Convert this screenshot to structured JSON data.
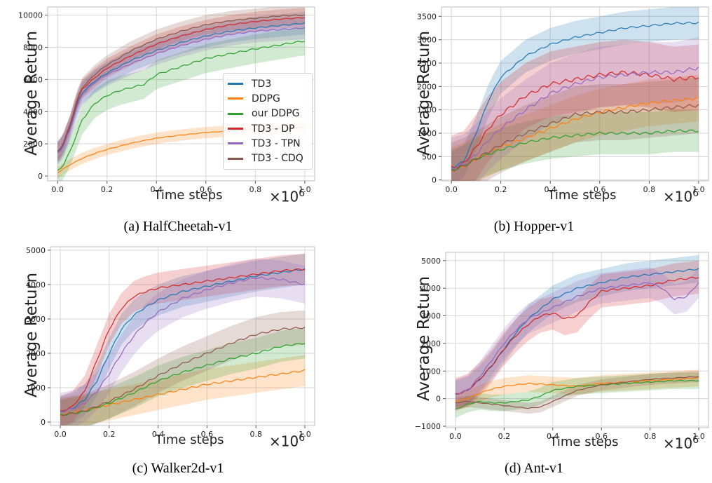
{
  "colors": {
    "TD3": "#1f77b4",
    "DDPG": "#ff7f0e",
    "our DDPG": "#2ca02c",
    "TD3 - DP": "#d62728",
    "TD3 - TPN": "#9467bd",
    "TD3 - CDQ": "#8c564b"
  },
  "chart_data": [
    {
      "type": "line",
      "caption": "(a) HalfCheetah-v1",
      "xlabel": "Time steps",
      "ylabel": "Average Return",
      "x_scale_label": "×10",
      "x_scale_exp": "6",
      "xlim": [
        -0.04,
        1.04
      ],
      "ylim": [
        -300,
        10500
      ],
      "xticks": [
        0.0,
        0.2,
        0.4,
        0.6,
        0.8,
        1.0
      ],
      "xtick_labels": [
        "0.0",
        "0.2",
        "0.4",
        "0.6",
        "0.8",
        "1.0"
      ],
      "yticks": [
        0,
        2000,
        4000,
        6000,
        8000,
        10000
      ],
      "ytick_labels": [
        "0",
        "2000",
        "4000",
        "6000",
        "8000",
        "10000"
      ],
      "grid": true,
      "legend": {
        "position": "lower-right",
        "entries": [
          "TD3",
          "DDPG",
          "our DDPG",
          "TD3 - DP",
          "TD3 - TPN",
          "TD3 - CDQ"
        ]
      },
      "series": [
        {
          "name": "TD3",
          "x": [
            0.0,
            0.02,
            0.05,
            0.08,
            0.1,
            0.15,
            0.2,
            0.3,
            0.4,
            0.5,
            0.6,
            0.7,
            0.8,
            0.9,
            1.0
          ],
          "y": [
            1500,
            1800,
            3000,
            4500,
            5200,
            5900,
            6400,
            7200,
            7800,
            8300,
            8700,
            9000,
            9200,
            9350,
            9500
          ],
          "band": 700
        },
        {
          "name": "DDPG",
          "x": [
            0.0,
            0.02,
            0.05,
            0.1,
            0.15,
            0.2,
            0.3,
            0.4,
            0.5,
            0.6,
            0.7,
            0.8,
            0.9,
            1.0
          ],
          "y": [
            200,
            400,
            700,
            1100,
            1400,
            1650,
            2050,
            2350,
            2550,
            2700,
            2800,
            2900,
            2970,
            3050
          ],
          "band": 350
        },
        {
          "name": "our DDPG",
          "x": [
            0.0,
            0.02,
            0.05,
            0.1,
            0.15,
            0.2,
            0.25,
            0.3,
            0.35,
            0.4,
            0.5,
            0.6,
            0.7,
            0.8,
            0.9,
            1.0
          ],
          "y": [
            300,
            600,
            1500,
            3500,
            4500,
            5000,
            5300,
            5500,
            5700,
            6300,
            6800,
            7300,
            7600,
            7900,
            8150,
            8400
          ],
          "band": 900
        },
        {
          "name": "TD3 - DP",
          "x": [
            0.0,
            0.02,
            0.05,
            0.08,
            0.1,
            0.15,
            0.2,
            0.3,
            0.4,
            0.5,
            0.6,
            0.7,
            0.8,
            0.9,
            1.0
          ],
          "y": [
            1500,
            1900,
            3100,
            4700,
            5400,
            6100,
            6700,
            7500,
            8200,
            8700,
            9100,
            9400,
            9600,
            9750,
            9850
          ],
          "band": 600
        },
        {
          "name": "TD3 - TPN",
          "x": [
            0.0,
            0.02,
            0.05,
            0.08,
            0.1,
            0.15,
            0.2,
            0.3,
            0.4,
            0.5,
            0.6,
            0.7,
            0.8,
            0.9,
            1.0
          ],
          "y": [
            1400,
            1700,
            2900,
            4400,
            5100,
            5800,
            6300,
            7000,
            7600,
            8100,
            8500,
            8800,
            9000,
            9100,
            9200
          ],
          "band": 700
        },
        {
          "name": "TD3 - CDQ",
          "x": [
            0.0,
            0.02,
            0.05,
            0.08,
            0.1,
            0.15,
            0.2,
            0.3,
            0.4,
            0.5,
            0.6,
            0.7,
            0.8,
            0.9,
            1.0
          ],
          "y": [
            1500,
            1900,
            3200,
            4800,
            5500,
            6300,
            6900,
            7800,
            8500,
            9000,
            9400,
            9650,
            9800,
            9950,
            10000
          ],
          "band": 600
        }
      ]
    },
    {
      "type": "line",
      "caption": "(b) Hopper-v1",
      "xlabel": "Time steps",
      "ylabel": "Average Return",
      "x_scale_label": "×10",
      "x_scale_exp": "6",
      "xlim": [
        -0.04,
        1.04
      ],
      "ylim": [
        -20,
        3700
      ],
      "xticks": [
        0.0,
        0.2,
        0.4,
        0.6,
        0.8,
        1.0
      ],
      "xtick_labels": [
        "0.0",
        "0.2",
        "0.4",
        "0.6",
        "0.8",
        "1.0"
      ],
      "yticks": [
        0,
        500,
        1000,
        1500,
        2000,
        2500,
        3000,
        3500
      ],
      "ytick_labels": [
        "0",
        "500",
        "1000",
        "1500",
        "2000",
        "2500",
        "3000",
        "3500"
      ],
      "grid": true,
      "series": [
        {
          "name": "TD3",
          "x": [
            0.0,
            0.05,
            0.1,
            0.15,
            0.2,
            0.3,
            0.4,
            0.5,
            0.6,
            0.7,
            0.8,
            0.9,
            1.0
          ],
          "y": [
            250,
            400,
            1000,
            1700,
            2200,
            2650,
            2900,
            3050,
            3150,
            3250,
            3300,
            3350,
            3360
          ],
          "band": 350
        },
        {
          "name": "DDPG",
          "x": [
            0.0,
            0.05,
            0.1,
            0.2,
            0.3,
            0.4,
            0.5,
            0.6,
            0.7,
            0.8,
            0.9,
            1.0
          ],
          "y": [
            200,
            300,
            450,
            700,
            900,
            1100,
            1300,
            1450,
            1550,
            1650,
            1700,
            1750
          ],
          "band": 500
        },
        {
          "name": "our DDPG",
          "x": [
            0.0,
            0.05,
            0.1,
            0.2,
            0.3,
            0.4,
            0.5,
            0.6,
            0.7,
            0.8,
            0.9,
            1.0
          ],
          "y": [
            200,
            300,
            450,
            650,
            800,
            900,
            950,
            1000,
            1000,
            1000,
            1050,
            1050
          ],
          "band": 450
        },
        {
          "name": "TD3 - DP",
          "x": [
            0.0,
            0.05,
            0.1,
            0.15,
            0.2,
            0.3,
            0.4,
            0.5,
            0.6,
            0.7,
            0.8,
            0.9,
            1.0
          ],
          "y": [
            250,
            350,
            700,
            1100,
            1400,
            1800,
            2050,
            2150,
            2250,
            2300,
            2250,
            2150,
            2200
          ],
          "band": 700
        },
        {
          "name": "TD3 - TPN",
          "x": [
            0.0,
            0.05,
            0.1,
            0.15,
            0.2,
            0.3,
            0.4,
            0.5,
            0.6,
            0.7,
            0.8,
            0.9,
            1.0
          ],
          "y": [
            250,
            330,
            550,
            850,
            1100,
            1500,
            1850,
            2050,
            2200,
            2250,
            2300,
            2300,
            2400
          ],
          "band": 650
        },
        {
          "name": "TD3 - CDQ",
          "x": [
            0.0,
            0.05,
            0.1,
            0.2,
            0.3,
            0.4,
            0.5,
            0.6,
            0.7,
            0.8,
            0.9,
            1.0
          ],
          "y": [
            200,
            300,
            450,
            750,
            1000,
            1200,
            1400,
            1450,
            1450,
            1500,
            1550,
            1600
          ],
          "band": 600
        }
      ]
    },
    {
      "type": "line",
      "caption": "(c) Walker2d-v1",
      "xlabel": "Time steps",
      "ylabel": "Average Return",
      "x_scale_label": "×10",
      "x_scale_exp": "6",
      "xlim": [
        -0.04,
        1.04
      ],
      "ylim": [
        -100,
        5100
      ],
      "xticks": [
        0.0,
        0.2,
        0.4,
        0.6,
        0.8,
        1.0
      ],
      "xtick_labels": [
        "0.0",
        "0.2",
        "0.4",
        "0.6",
        "0.8",
        "1.0"
      ],
      "yticks": [
        0,
        1000,
        2000,
        3000,
        4000,
        5000
      ],
      "ytick_labels": [
        "0",
        "1000",
        "2000",
        "3000",
        "4000",
        "5000"
      ],
      "grid": true,
      "series": [
        {
          "name": "TD3",
          "x": [
            0.0,
            0.05,
            0.1,
            0.15,
            0.2,
            0.25,
            0.3,
            0.35,
            0.4,
            0.5,
            0.6,
            0.7,
            0.8,
            0.9,
            1.0
          ],
          "y": [
            300,
            400,
            650,
            1200,
            2000,
            2700,
            3100,
            3350,
            3550,
            3800,
            3950,
            4100,
            4250,
            4350,
            4450
          ],
          "band": 450
        },
        {
          "name": "DDPG",
          "x": [
            0.0,
            0.1,
            0.2,
            0.3,
            0.4,
            0.5,
            0.6,
            0.7,
            0.8,
            0.9,
            1.0
          ],
          "y": [
            200,
            350,
            500,
            650,
            800,
            950,
            1100,
            1200,
            1300,
            1400,
            1500
          ],
          "band": 450
        },
        {
          "name": "our DDPG",
          "x": [
            0.0,
            0.1,
            0.2,
            0.3,
            0.4,
            0.5,
            0.6,
            0.7,
            0.8,
            0.9,
            1.0
          ],
          "y": [
            200,
            300,
            550,
            850,
            1200,
            1450,
            1650,
            1850,
            2000,
            2200,
            2300
          ],
          "band": 450
        },
        {
          "name": "TD3 - DP",
          "x": [
            0.0,
            0.05,
            0.1,
            0.15,
            0.2,
            0.25,
            0.3,
            0.35,
            0.4,
            0.5,
            0.6,
            0.7,
            0.8,
            0.9,
            1.0
          ],
          "y": [
            300,
            450,
            900,
            1800,
            2700,
            3300,
            3650,
            3800,
            3900,
            4000,
            4100,
            4200,
            4300,
            4400,
            4450
          ],
          "band": 450
        },
        {
          "name": "TD3 - TPN",
          "x": [
            0.0,
            0.05,
            0.1,
            0.15,
            0.2,
            0.25,
            0.3,
            0.35,
            0.4,
            0.5,
            0.6,
            0.7,
            0.8,
            0.9,
            1.0
          ],
          "y": [
            300,
            380,
            550,
            900,
            1400,
            2000,
            2500,
            2900,
            3200,
            3600,
            3850,
            4050,
            4200,
            4150,
            4000
          ],
          "band": 550
        },
        {
          "name": "TD3 - CDQ",
          "x": [
            0.0,
            0.1,
            0.2,
            0.3,
            0.4,
            0.5,
            0.6,
            0.7,
            0.8,
            0.9,
            1.0
          ],
          "y": [
            200,
            320,
            600,
            950,
            1350,
            1700,
            2000,
            2300,
            2550,
            2700,
            2750
          ],
          "band": 500
        }
      ]
    },
    {
      "type": "line",
      "caption": "(d) Ant-v1",
      "xlabel": "Time steps",
      "ylabel": "Average Return",
      "x_scale_label": "×10",
      "x_scale_exp": "6",
      "xlim": [
        -0.04,
        1.04
      ],
      "ylim": [
        -1050,
        5300
      ],
      "xticks": [
        0.0,
        0.2,
        0.4,
        0.6,
        0.8,
        1.0
      ],
      "xtick_labels": [
        "0.0",
        "0.2",
        "0.4",
        "0.6",
        "0.8",
        "1.0"
      ],
      "yticks": [
        -1000,
        0,
        1000,
        2000,
        3000,
        4000,
        5000
      ],
      "ytick_labels": [
        "−1000",
        "0",
        "1000",
        "2000",
        "3000",
        "4000",
        "5000"
      ],
      "grid": true,
      "series": [
        {
          "name": "TD3",
          "x": [
            0.0,
            0.05,
            0.1,
            0.15,
            0.2,
            0.25,
            0.3,
            0.4,
            0.5,
            0.6,
            0.7,
            0.8,
            0.9,
            1.0
          ],
          "y": [
            150,
            300,
            700,
            1200,
            1800,
            2400,
            2900,
            3600,
            4000,
            4200,
            4400,
            4500,
            4600,
            4700
          ],
          "band": 500
        },
        {
          "name": "DDPG",
          "x": [
            0.0,
            0.05,
            0.1,
            0.15,
            0.2,
            0.3,
            0.4,
            0.5,
            0.6,
            0.7,
            0.8,
            0.9,
            1.0
          ],
          "y": [
            -100,
            0,
            200,
            350,
            450,
            550,
            500,
            450,
            550,
            600,
            650,
            700,
            750
          ],
          "band": 300
        },
        {
          "name": "our DDPG",
          "x": [
            0.0,
            0.05,
            0.1,
            0.15,
            0.2,
            0.3,
            0.35,
            0.4,
            0.5,
            0.6,
            0.7,
            0.8,
            0.9,
            1.0
          ],
          "y": [
            -400,
            -200,
            -100,
            -150,
            -150,
            -50,
            100,
            300,
            450,
            500,
            550,
            600,
            650,
            650
          ],
          "band": 300
        },
        {
          "name": "TD3 - DP",
          "x": [
            0.0,
            0.05,
            0.1,
            0.15,
            0.2,
            0.25,
            0.3,
            0.35,
            0.4,
            0.45,
            0.5,
            0.55,
            0.6,
            0.7,
            0.8,
            0.9,
            1.0
          ],
          "y": [
            150,
            300,
            700,
            1200,
            1800,
            2300,
            2700,
            3000,
            3100,
            2900,
            3000,
            3500,
            3900,
            4000,
            4100,
            4300,
            4400
          ],
          "band": 600
        },
        {
          "name": "TD3 - TPN",
          "x": [
            0.0,
            0.05,
            0.1,
            0.15,
            0.2,
            0.25,
            0.3,
            0.4,
            0.5,
            0.6,
            0.7,
            0.8,
            0.85,
            0.9,
            0.95,
            1.0
          ],
          "y": [
            150,
            300,
            800,
            1400,
            2000,
            2500,
            2900,
            3300,
            3700,
            4000,
            4100,
            4200,
            4000,
            3600,
            3700,
            4200
          ],
          "band": 550
        },
        {
          "name": "TD3 - CDQ",
          "x": [
            0.0,
            0.05,
            0.1,
            0.15,
            0.2,
            0.25,
            0.3,
            0.35,
            0.4,
            0.5,
            0.6,
            0.7,
            0.8,
            0.9,
            1.0
          ],
          "y": [
            -150,
            -100,
            -150,
            -200,
            -250,
            -300,
            -350,
            -300,
            -100,
            300,
            500,
            600,
            700,
            750,
            800
          ],
          "band": 200
        }
      ]
    }
  ]
}
